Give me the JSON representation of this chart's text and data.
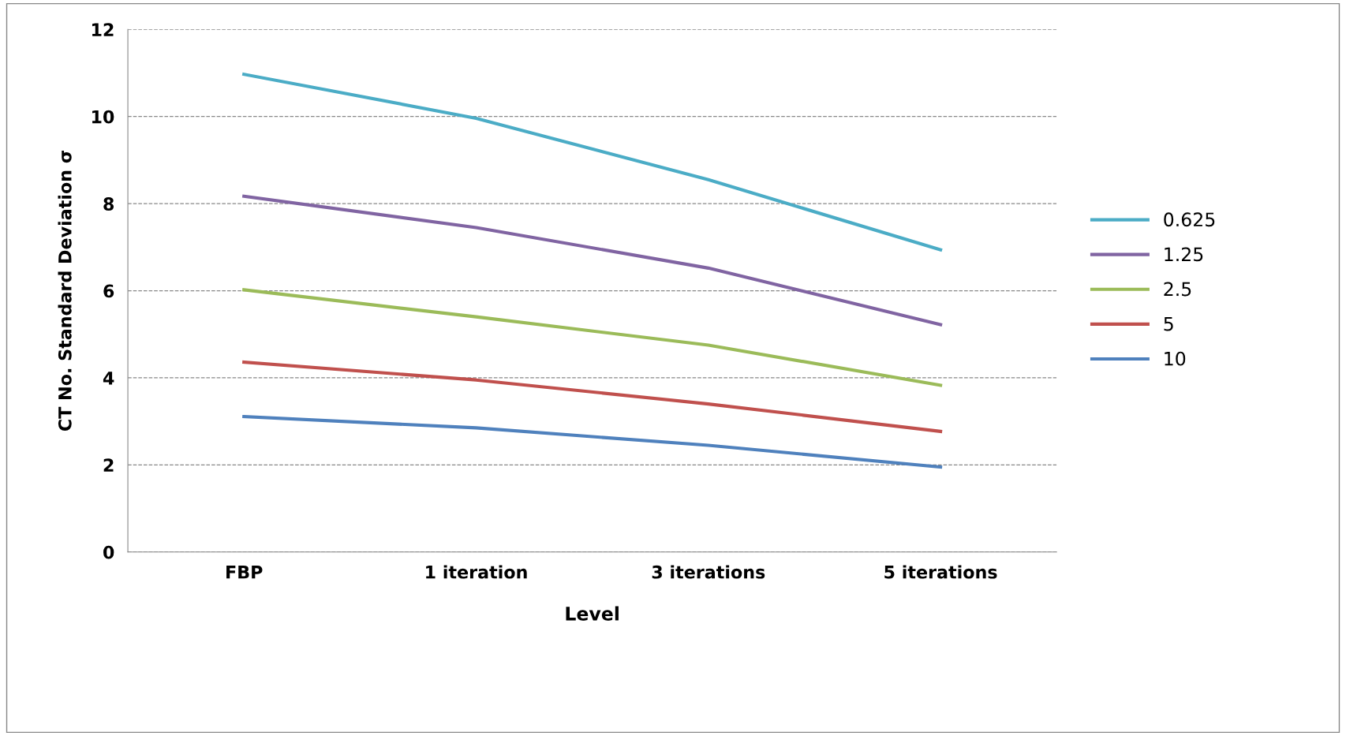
{
  "chart_data": {
    "type": "line",
    "xlabel": "Level",
    "ylabel": "CT No. Standard Deviation σ",
    "categories": [
      "FBP",
      "1 iteration",
      "3 iterations",
      "5 iterations"
    ],
    "series": [
      {
        "name": "0.625",
        "color": "#4bacc6",
        "values": [
          10.97,
          9.96,
          8.55,
          6.94
        ]
      },
      {
        "name": "1.25",
        "color": "#8064a2",
        "values": [
          8.17,
          7.45,
          6.52,
          5.22
        ]
      },
      {
        "name": "2.5",
        "color": "#9bbb59",
        "values": [
          6.02,
          5.4,
          4.75,
          3.83
        ]
      },
      {
        "name": "5",
        "color": "#c0504d",
        "values": [
          4.36,
          3.95,
          3.4,
          2.77
        ]
      },
      {
        "name": "10",
        "color": "#4f81bd",
        "values": [
          3.11,
          2.85,
          2.45,
          1.95
        ]
      }
    ],
    "ylim": [
      0,
      12
    ],
    "yticks": [
      0,
      2,
      4,
      6,
      8,
      10,
      12
    ],
    "grid": "y",
    "legend": "right",
    "marker": "none",
    "line_style": "solid"
  }
}
